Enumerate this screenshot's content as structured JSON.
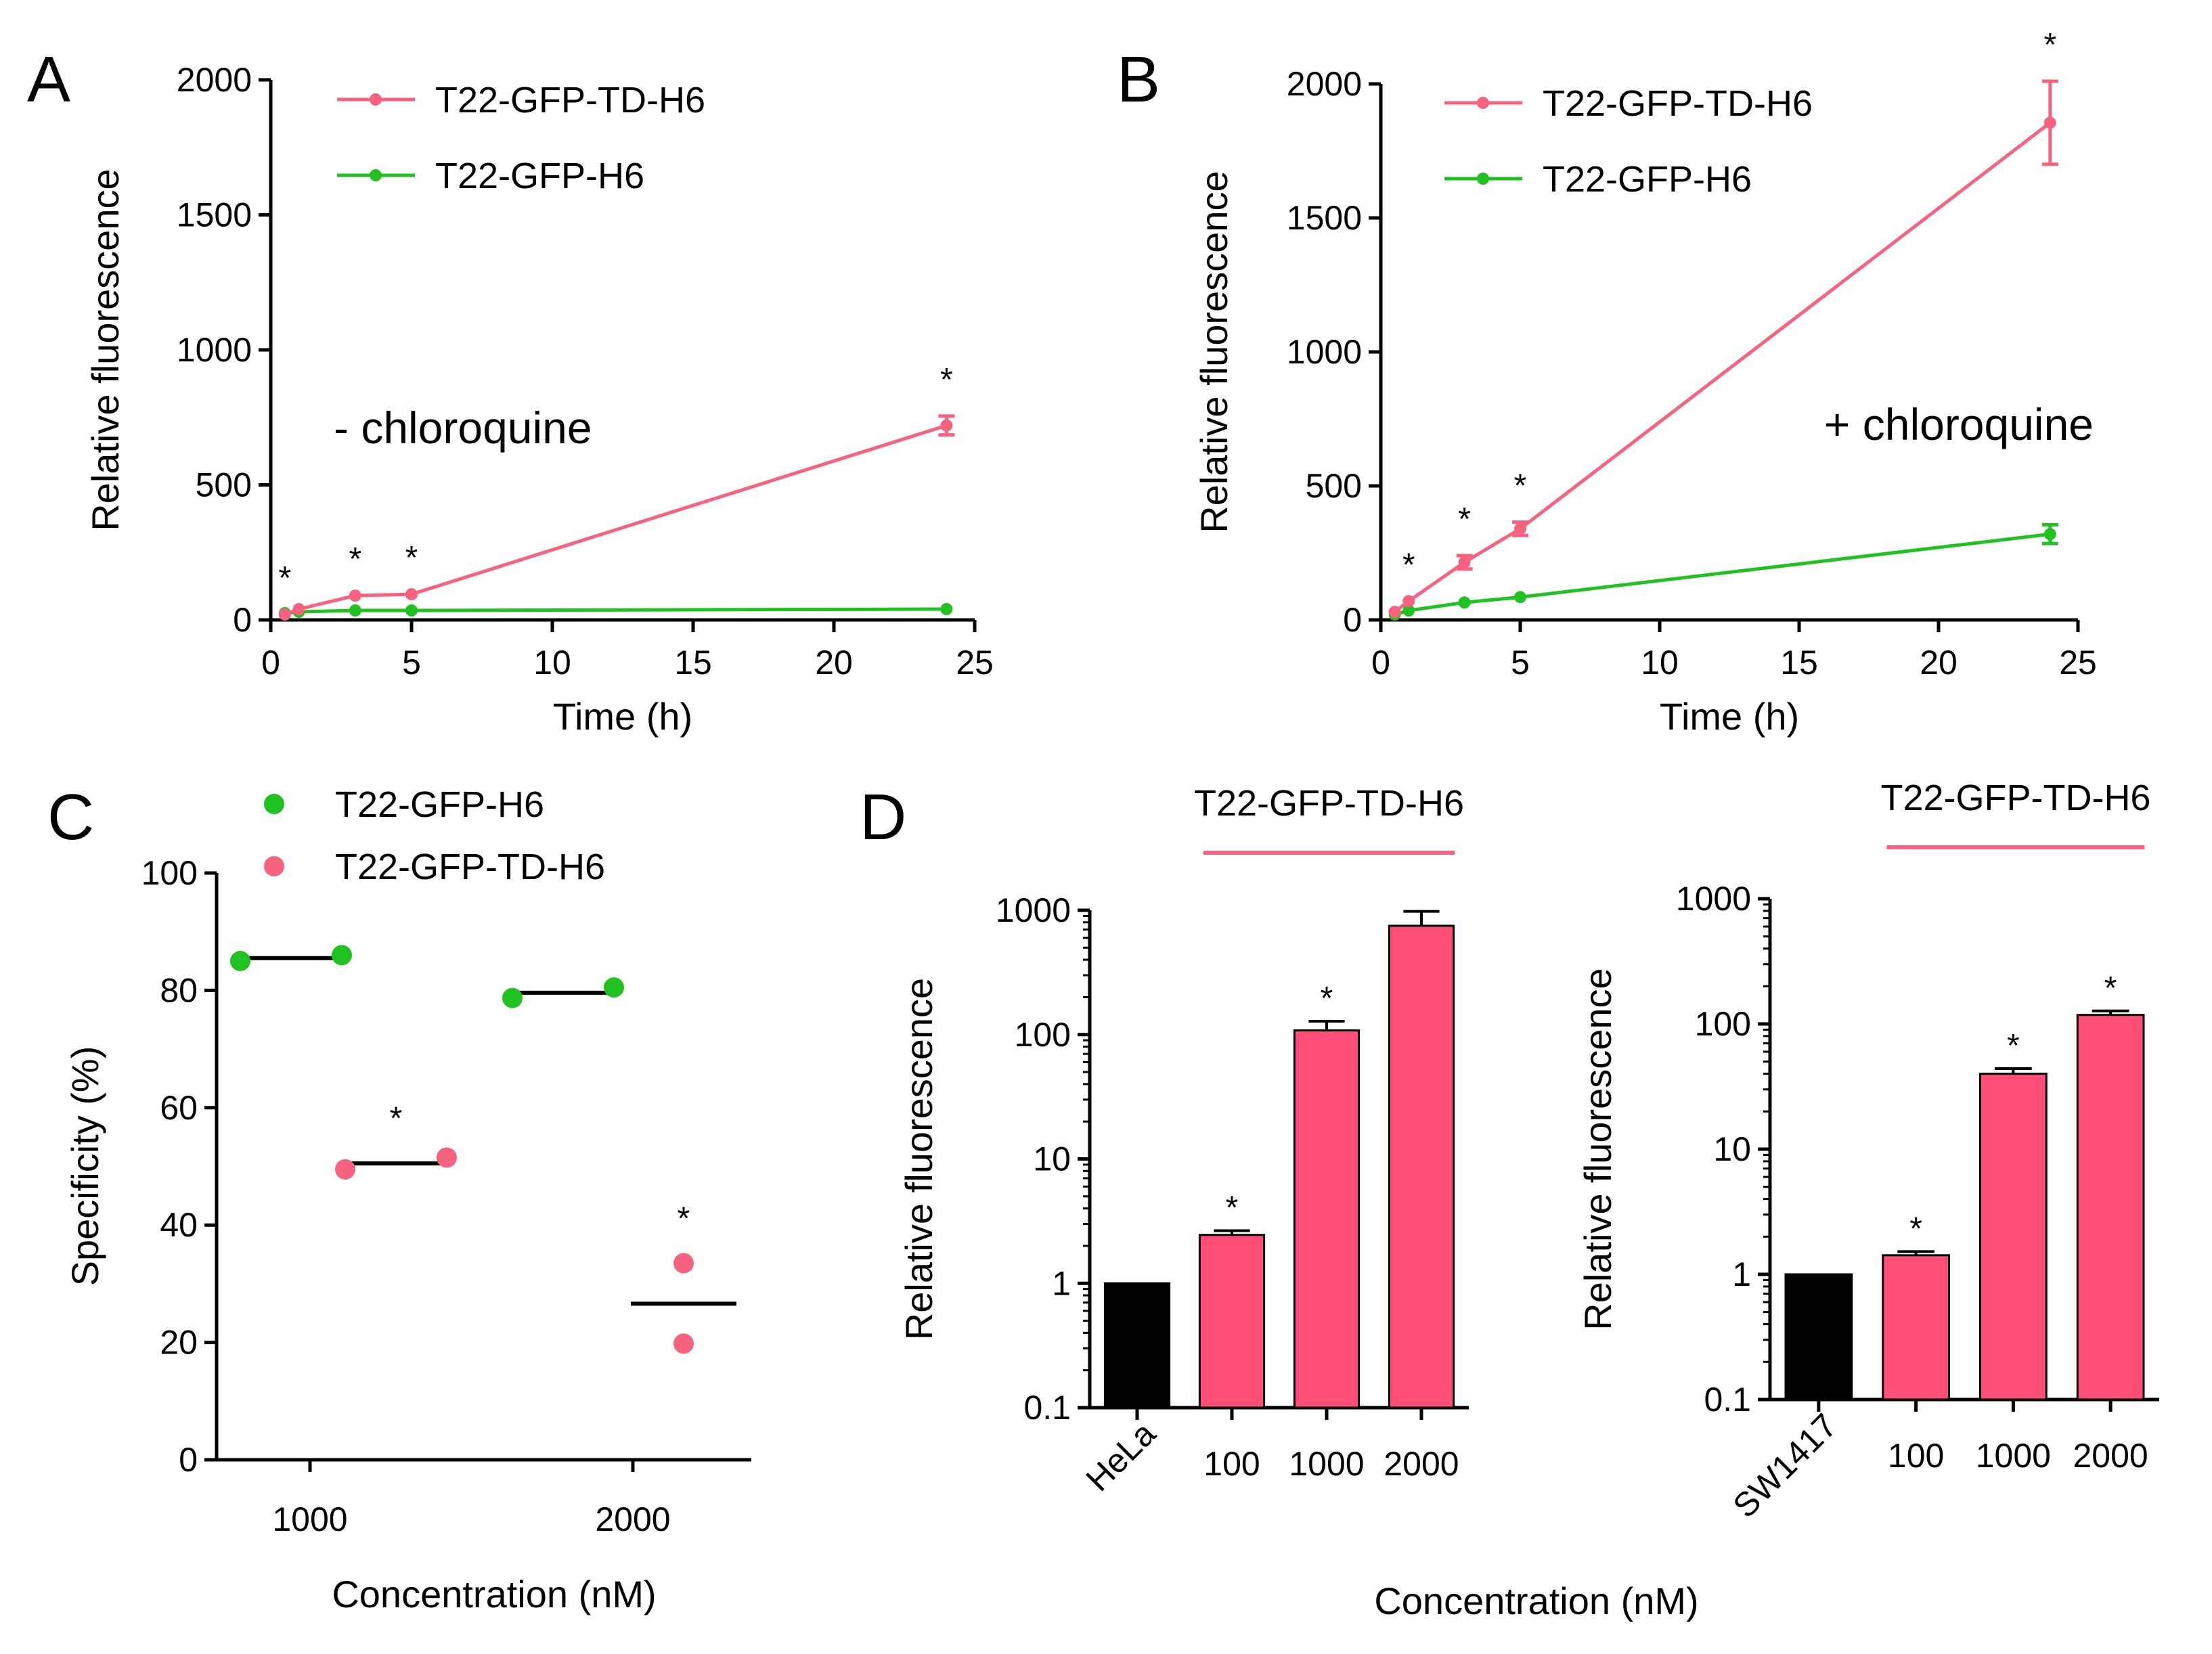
{
  "colors": {
    "pink": "#f7637e",
    "green": "#21c121",
    "black": "#000000",
    "bar_pink": "#ff4f77"
  },
  "chart_data": [
    {
      "panel": "A",
      "type": "line",
      "xlabel": "Time (h)",
      "ylabel": "Relative fluorescence",
      "xlim": [
        0,
        25
      ],
      "ylim": [
        0,
        2000
      ],
      "xticks": [
        "0",
        "5",
        "10",
        "15",
        "20",
        "25"
      ],
      "yticks": [
        "0",
        "500",
        "1000",
        "1500",
        "2000"
      ],
      "annotation": "- chloroquine",
      "legend": [
        "T22-GFP-TD-H6",
        "T22-GFP-H6"
      ],
      "series": [
        {
          "name": "T22-GFP-TD-H6",
          "color": "#f7637e",
          "x": [
            0.5,
            1,
            3,
            5,
            24
          ],
          "y": [
            20,
            40,
            90,
            95,
            720
          ],
          "err": [
            0,
            0,
            0,
            0,
            35
          ]
        },
        {
          "name": "T22-GFP-H6",
          "color": "#21c121",
          "x": [
            0.5,
            1,
            3,
            5,
            24
          ],
          "y": [
            25,
            30,
            35,
            35,
            40
          ],
          "err": [
            0,
            0,
            0,
            0,
            0
          ]
        }
      ],
      "significance": [
        {
          "x": 0.5,
          "y": 20,
          "label": "*"
        },
        {
          "x": 3,
          "y": 90,
          "label": "*"
        },
        {
          "x": 5,
          "y": 95,
          "label": "*"
        },
        {
          "x": 24,
          "y": 755,
          "label": "*"
        }
      ]
    },
    {
      "panel": "B",
      "type": "line",
      "xlabel": "Time (h)",
      "ylabel": "Relative fluorescence",
      "xlim": [
        0,
        25
      ],
      "ylim": [
        0,
        2000
      ],
      "xticks": [
        "0",
        "5",
        "10",
        "15",
        "20",
        "25"
      ],
      "yticks": [
        "0",
        "500",
        "1000",
        "1500",
        "2000"
      ],
      "annotation": "+ chloroquine",
      "legend": [
        "T22-GFP-TD-H6",
        "T22-GFP-H6"
      ],
      "series": [
        {
          "name": "T22-GFP-TD-H6",
          "color": "#f7637e",
          "x": [
            0.5,
            1,
            3,
            5,
            24
          ],
          "y": [
            30,
            70,
            215,
            340,
            1855
          ],
          "err": [
            0,
            0,
            25,
            25,
            155
          ]
        },
        {
          "name": "T22-GFP-H6",
          "color": "#21c121",
          "x": [
            0.5,
            1,
            3,
            5,
            24
          ],
          "y": [
            20,
            35,
            65,
            85,
            320
          ],
          "err": [
            0,
            0,
            0,
            0,
            35
          ]
        }
      ],
      "significance": [
        {
          "x": 1,
          "y": 70,
          "label": "*"
        },
        {
          "x": 3,
          "y": 240,
          "label": "*"
        },
        {
          "x": 5,
          "y": 365,
          "label": "*"
        },
        {
          "x": 24,
          "y": 2010,
          "label": "*"
        }
      ]
    },
    {
      "panel": "C",
      "type": "scatter",
      "xlabel": "Concentration (nM)",
      "ylabel": "Specificity (%)",
      "ylim": [
        0,
        100
      ],
      "yticks": [
        "0",
        "20",
        "40",
        "60",
        "80",
        "100"
      ],
      "categories": [
        "1000",
        "2000"
      ],
      "legend": [
        "T22-GFP-H6",
        "T22-GFP-TD-H6"
      ],
      "groups": [
        {
          "category": "1000",
          "series": "T22-GFP-H6",
          "color": "#21c121",
          "points": [
            85.0,
            86.0
          ],
          "mean": 85.5,
          "label": ""
        },
        {
          "category": "1000",
          "series": "T22-GFP-TD-H6",
          "color": "#f7637e",
          "points": [
            49.5,
            51.5
          ],
          "mean": 50.5,
          "label": "*"
        },
        {
          "category": "2000",
          "series": "T22-GFP-H6",
          "color": "#21c121",
          "points": [
            78.7,
            80.5
          ],
          "mean": 79.6,
          "label": ""
        },
        {
          "category": "2000",
          "series": "T22-GFP-TD-H6",
          "color": "#f7637e",
          "points": [
            33.5,
            19.8
          ],
          "mean": 26.6,
          "label": "*"
        }
      ]
    },
    {
      "panel": "D",
      "type": "bar",
      "yscale": "log",
      "ylabel": "Relative fluorescence",
      "ylim": [
        0.1,
        1000
      ],
      "yticks": [
        "0.1",
        "1",
        "10",
        "100",
        "1000"
      ],
      "group_label": "T22-GFP-TD-H6",
      "categories": [
        "HeLa",
        "100",
        "1000",
        "2000"
      ],
      "values": [
        1.0,
        2.45,
        108,
        750
      ],
      "errors": [
        0.0,
        0.2,
        20,
        230
      ],
      "bar_colors": [
        "#000000",
        "#ff4f77",
        "#ff4f77",
        "#ff4f77"
      ],
      "significance": [
        "",
        "*",
        "*",
        ""
      ]
    },
    {
      "panel": "",
      "type": "bar",
      "yscale": "log",
      "ylabel": "Relative fluorescence",
      "ylim": [
        0.1,
        1000
      ],
      "yticks": [
        "0.1",
        "1",
        "10",
        "100",
        "1000"
      ],
      "group_label": "T22-GFP-TD-H6",
      "categories": [
        "SW1417",
        "100",
        "1000",
        "2000"
      ],
      "values": [
        1.0,
        1.42,
        40,
        118
      ],
      "errors": [
        0.0,
        0.1,
        4,
        9
      ],
      "bar_colors": [
        "#000000",
        "#ff4f77",
        "#ff4f77",
        "#ff4f77"
      ],
      "significance": [
        "",
        "*",
        "*",
        "*"
      ],
      "shared_xlabel": "Concentration (nM)"
    }
  ]
}
